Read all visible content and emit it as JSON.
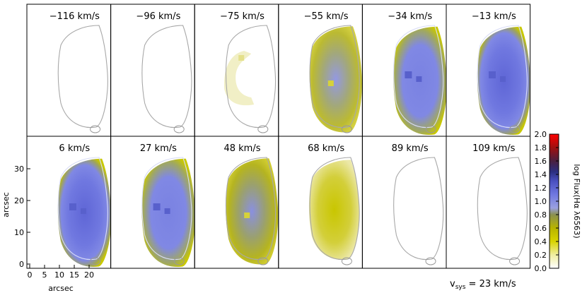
{
  "panels": [
    {
      "label": "−116 km/s",
      "level": 0
    },
    {
      "label": "−96 km/s",
      "level": 0
    },
    {
      "label": "−75 km/s",
      "level": 0.18
    },
    {
      "label": "−55 km/s",
      "level": 0.6
    },
    {
      "label": "−34 km/s",
      "level": 0.95
    },
    {
      "label": "−13 km/s",
      "level": 1.05
    },
    {
      "label": "6 km/s",
      "level": 1.05
    },
    {
      "label": "27 km/s",
      "level": 0.95
    },
    {
      "label": "48 km/s",
      "level": 0.75
    },
    {
      "label": "68 km/s",
      "level": 0.35
    },
    {
      "label": "89 km/s",
      "level": 0
    },
    {
      "label": "109 km/s",
      "level": 0
    }
  ],
  "axes": {
    "x_label": "arcsec",
    "y_label": "arcsec",
    "x_ticks": [
      "0",
      "5",
      "10",
      "15",
      "20"
    ],
    "y_ticks": [
      "0",
      "10",
      "20",
      "30"
    ]
  },
  "colorbar": {
    "label": "log Flux(Hα λ6563)",
    "ticks": [
      "0.0",
      "0.2",
      "0.4",
      "0.6",
      "0.8",
      "1.0",
      "1.2",
      "1.4",
      "1.6",
      "1.8",
      "2.0"
    ]
  },
  "vsys": {
    "prefix": "v",
    "subscript": "sys",
    "value": " = 23 km/s"
  },
  "colors": {
    "faint": "#f4f2d8",
    "yellow": "#c8c800",
    "olive": "#8f9a4a",
    "blue": "#7078e0",
    "dark_blue": "#3a40b0",
    "outline": "#aaaaaa"
  }
}
